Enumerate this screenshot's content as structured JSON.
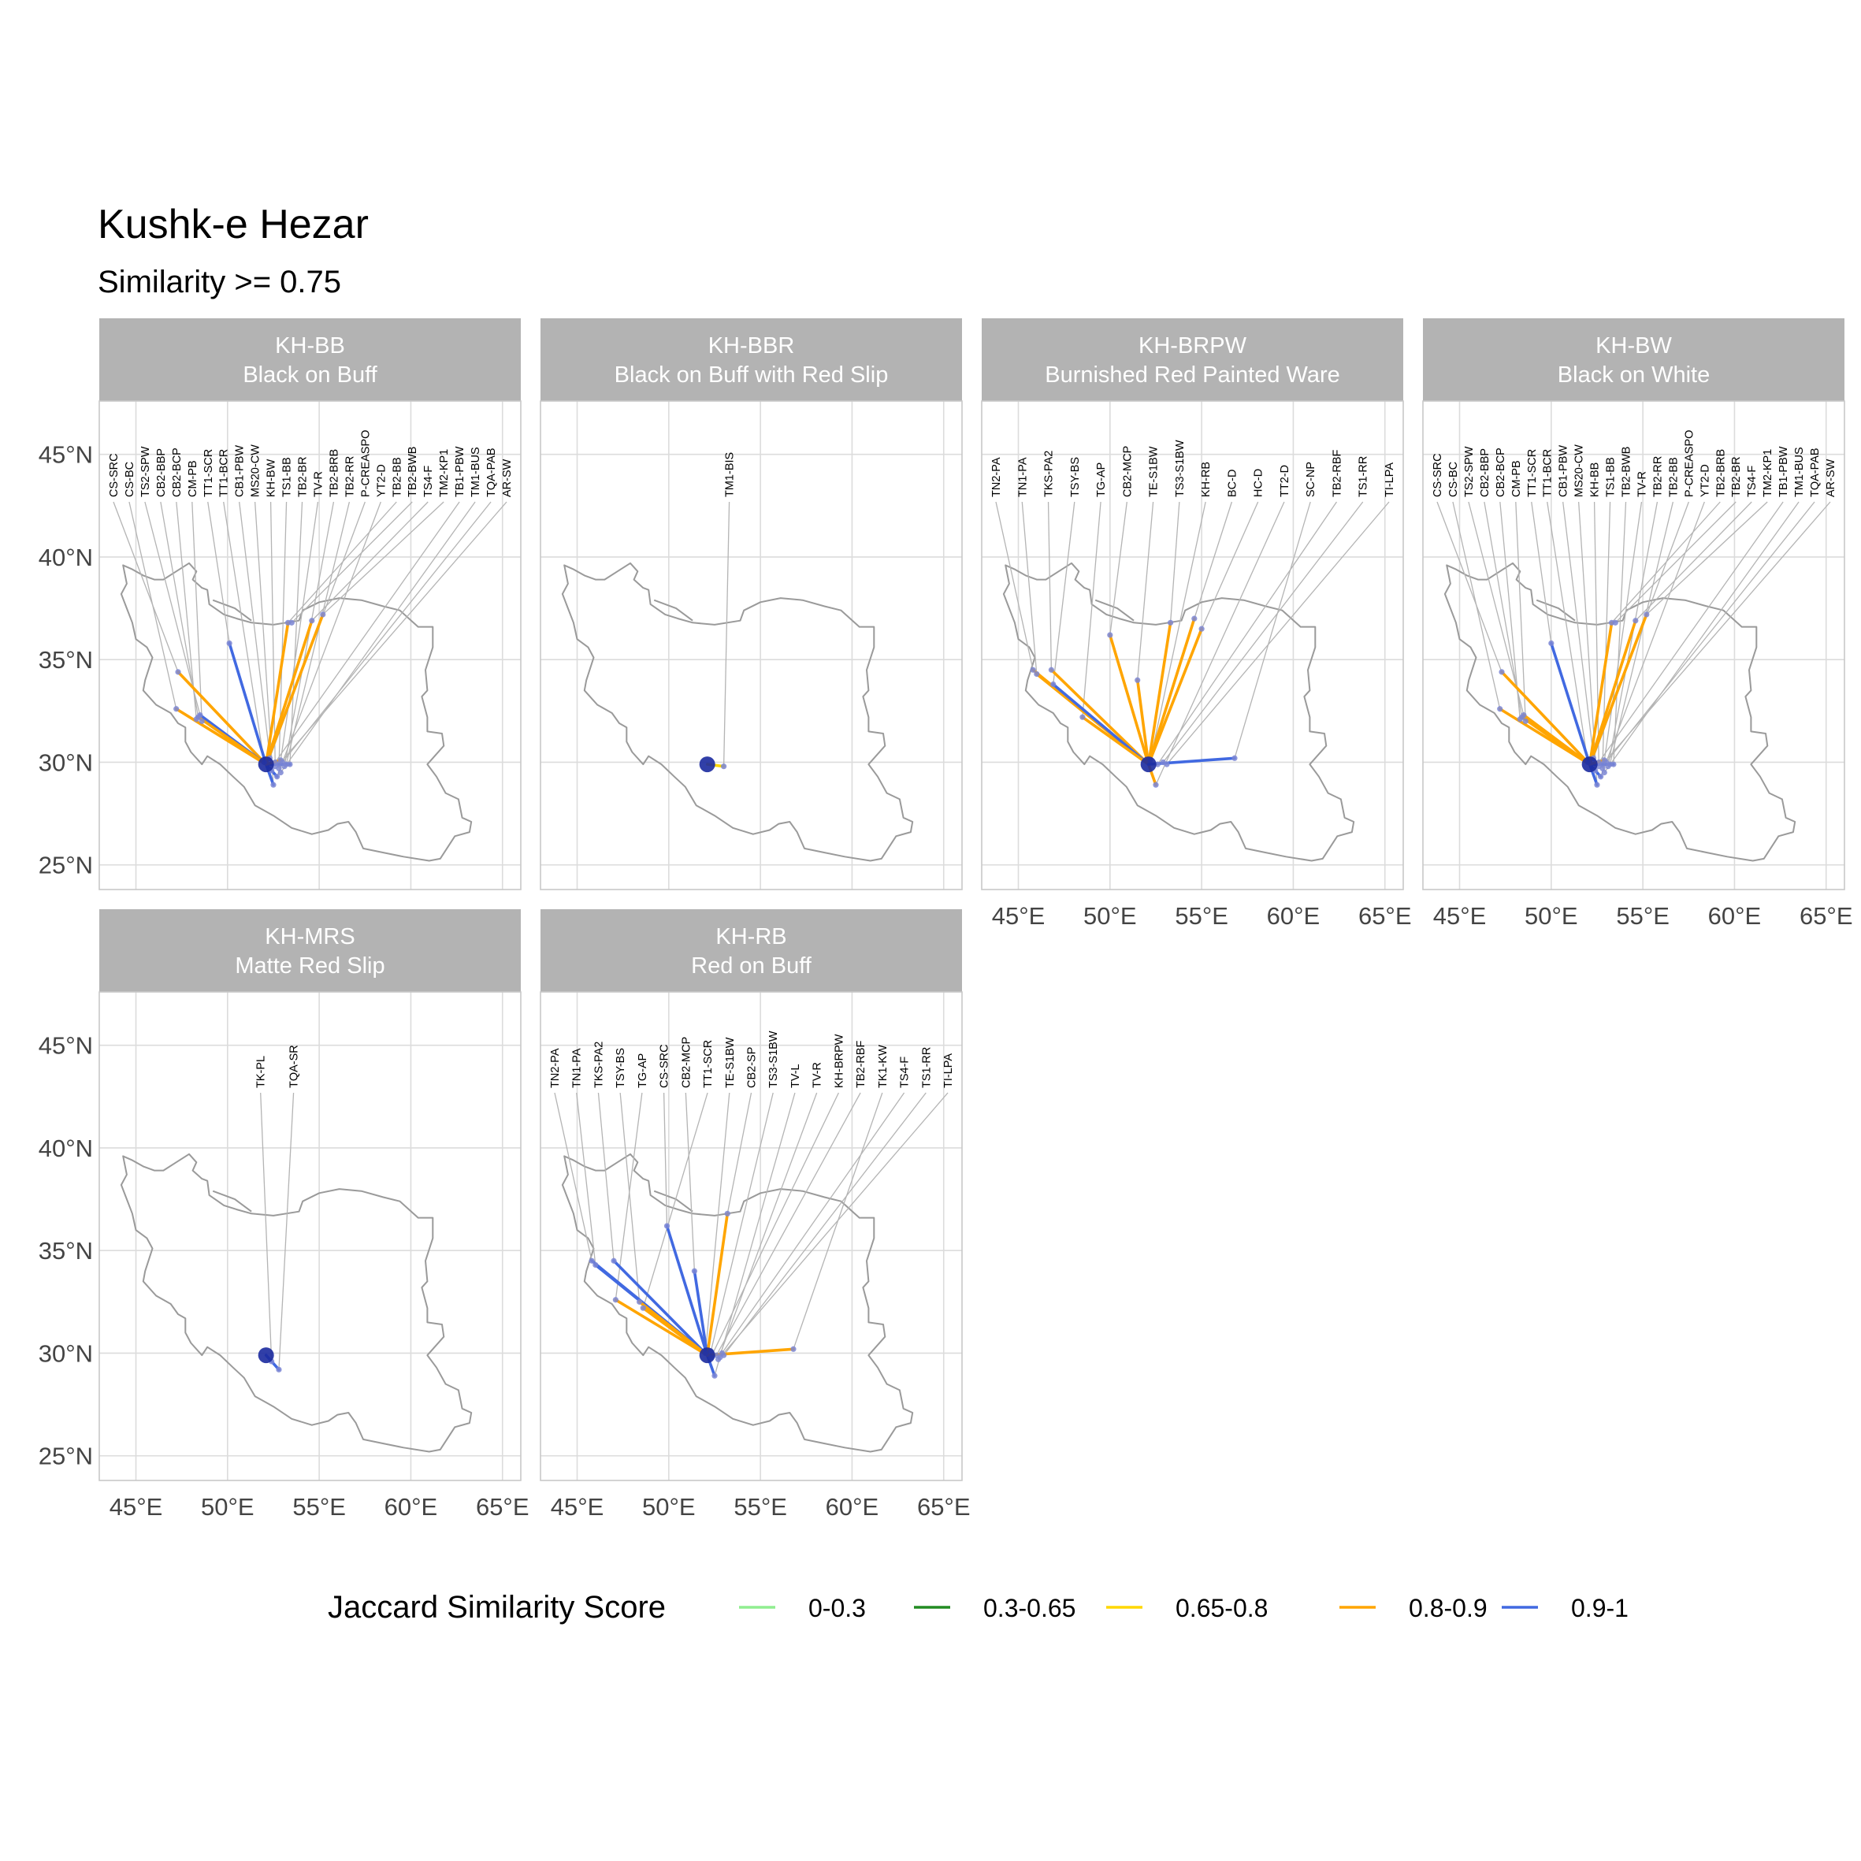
{
  "chart_data": {
    "type": "map",
    "title": "Kushk-e Hezar",
    "subtitle": "Similarity >= 0.75",
    "xlim": [
      43,
      66
    ],
    "ylim": [
      23.8,
      47.6
    ],
    "x_ticks": [
      {
        "value": 45,
        "label": "45°E"
      },
      {
        "value": 50,
        "label": "50°E"
      },
      {
        "value": 55,
        "label": "55°E"
      },
      {
        "value": 60,
        "label": "60°E"
      },
      {
        "value": 65,
        "label": "65°E"
      }
    ],
    "y_ticks": [
      {
        "value": 25,
        "label": "25°N"
      },
      {
        "value": 30,
        "label": "30°N"
      },
      {
        "value": 35,
        "label": "35°N"
      },
      {
        "value": 40,
        "label": "40°N"
      },
      {
        "value": 45,
        "label": "45°N"
      }
    ],
    "origin": {
      "lon": 52.1,
      "lat": 29.9
    },
    "grid": true,
    "legend": {
      "title": "Jaccard Similarity Score",
      "position": "bottom",
      "items": [
        {
          "label": "0-0.3",
          "color": "#90ee90"
        },
        {
          "label": "0.3-0.65",
          "color": "#228b22"
        },
        {
          "label": "0.65-0.8",
          "color": "#ffd700"
        },
        {
          "label": "0.8-0.9",
          "color": "#ffa500"
        },
        {
          "label": "0.9-1",
          "color": "#4169e1"
        }
      ]
    },
    "panels": [
      {
        "code": "KH-BB",
        "name": "Black on Buff",
        "labels": [
          "CS-SRC",
          "CS-BC",
          "TS2-SPW",
          "CB2-BBP",
          "CB2-BCP",
          "CM-PB",
          "TT1-SCR",
          "TT1-BCR",
          "CB1-PBW",
          "MS20-CW",
          "KH-BW",
          "TS1-BB",
          "TB2-BR",
          "TV-R",
          "TB2-BRB",
          "TB2-RR",
          "P-CREASPO",
          "YT2-D",
          "TB2-BB",
          "TB2-BWB",
          "TS4-F",
          "TM2-KP1",
          "TB1-PBW",
          "TM1-BUS",
          "TQA-PAB",
          "AR-SW"
        ],
        "sites": [
          {
            "lon": 47.3,
            "lat": 34.4
          },
          {
            "lon": 47.2,
            "lat": 32.6
          },
          {
            "lon": 48.5,
            "lat": 32.3
          },
          {
            "lon": 48.4,
            "lat": 32.2
          },
          {
            "lon": 48.3,
            "lat": 32.1
          },
          {
            "lon": 48.6,
            "lat": 32.0
          },
          {
            "lon": 50.1,
            "lat": 35.8
          },
          {
            "lon": 52.0,
            "lat": 30.0
          },
          {
            "lon": 52.4,
            "lat": 29.6
          },
          {
            "lon": 52.5,
            "lat": 28.9
          },
          {
            "lon": 52.6,
            "lat": 29.8
          },
          {
            "lon": 52.8,
            "lat": 29.7
          },
          {
            "lon": 53.4,
            "lat": 29.9
          },
          {
            "lon": 52.9,
            "lat": 30.1
          },
          {
            "lon": 53.1,
            "lat": 29.8
          },
          {
            "lon": 53.2,
            "lat": 29.9
          },
          {
            "lon": 52.3,
            "lat": 30.2
          },
          {
            "lon": 52.7,
            "lat": 29.3
          },
          {
            "lon": 53.3,
            "lat": 36.8
          },
          {
            "lon": 53.5,
            "lat": 36.8
          },
          {
            "lon": 54.6,
            "lat": 36.9
          },
          {
            "lon": 55.2,
            "lat": 37.2
          },
          {
            "lon": 52.6,
            "lat": 30.0
          },
          {
            "lon": 52.9,
            "lat": 29.5
          },
          {
            "lon": 53.0,
            "lat": 30.0
          },
          {
            "lon": 52.8,
            "lat": 29.9
          }
        ],
        "links": [
          {
            "lon": 47.3,
            "lat": 34.4,
            "color": "#ffa500"
          },
          {
            "lon": 47.2,
            "lat": 32.6,
            "color": "#ffa500"
          },
          {
            "lon": 48.5,
            "lat": 32.3,
            "color": "#4169e1"
          },
          {
            "lon": 48.4,
            "lat": 32.2,
            "color": "#ffa500"
          },
          {
            "lon": 50.1,
            "lat": 35.8,
            "color": "#4169e1"
          },
          {
            "lon": 53.3,
            "lat": 36.8,
            "color": "#ffa500"
          },
          {
            "lon": 54.6,
            "lat": 36.9,
            "color": "#ffa500"
          },
          {
            "lon": 55.2,
            "lat": 37.2,
            "color": "#ffa500"
          },
          {
            "lon": 52.5,
            "lat": 28.9,
            "color": "#4169e1"
          },
          {
            "lon": 52.7,
            "lat": 29.3,
            "color": "#4169e1"
          },
          {
            "lon": 53.4,
            "lat": 29.9,
            "color": "#4169e1"
          },
          {
            "lon": 52.9,
            "lat": 30.1,
            "color": "#ffa500"
          }
        ]
      },
      {
        "code": "KH-BBR",
        "name": "Black on Buff with Red Slip",
        "labels": [
          "TM1-BIS"
        ],
        "sites": [
          {
            "lon": 53.0,
            "lat": 29.8
          }
        ],
        "links": [
          {
            "lon": 53.0,
            "lat": 29.8,
            "color": "#ffd700"
          }
        ]
      },
      {
        "code": "KH-BRPW",
        "name": "Burnished Red Painted Ware",
        "labels": [
          "TN2-PA",
          "TN1-PA",
          "TKS-PA2",
          "TSY-BS",
          "TG-AP",
          "CB2-MCP",
          "TE-S1BW",
          "TS3-S1BW",
          "KH-RB",
          "BC-D",
          "HC-D",
          "TT2-D",
          "SC-NP",
          "TB2-RBF",
          "TS1-RR",
          "TI-LPA"
        ],
        "sites": [
          {
            "lon": 45.8,
            "lat": 34.5
          },
          {
            "lon": 46.0,
            "lat": 34.3
          },
          {
            "lon": 46.8,
            "lat": 34.5
          },
          {
            "lon": 46.9,
            "lat": 33.8
          },
          {
            "lon": 48.5,
            "lat": 32.2
          },
          {
            "lon": 50.0,
            "lat": 36.2
          },
          {
            "lon": 51.5,
            "lat": 34.0
          },
          {
            "lon": 53.3,
            "lat": 36.8
          },
          {
            "lon": 52.2,
            "lat": 30.1
          },
          {
            "lon": 54.6,
            "lat": 37.0
          },
          {
            "lon": 55.0,
            "lat": 36.5
          },
          {
            "lon": 52.5,
            "lat": 28.9
          },
          {
            "lon": 56.8,
            "lat": 30.2
          },
          {
            "lon": 52.6,
            "lat": 29.9
          },
          {
            "lon": 52.9,
            "lat": 30.0
          },
          {
            "lon": 53.1,
            "lat": 29.9
          }
        ],
        "links": [
          {
            "lon": 45.8,
            "lat": 34.5,
            "color": "#ffa500"
          },
          {
            "lon": 46.0,
            "lat": 34.3,
            "color": "#ffa500"
          },
          {
            "lon": 46.8,
            "lat": 34.5,
            "color": "#ffa500"
          },
          {
            "lon": 46.9,
            "lat": 33.8,
            "color": "#4169e1"
          },
          {
            "lon": 48.5,
            "lat": 32.2,
            "color": "#ffa500"
          },
          {
            "lon": 50.0,
            "lat": 36.2,
            "color": "#ffa500"
          },
          {
            "lon": 51.5,
            "lat": 34.0,
            "color": "#ffa500"
          },
          {
            "lon": 53.3,
            "lat": 36.8,
            "color": "#ffa500"
          },
          {
            "lon": 54.6,
            "lat": 37.0,
            "color": "#ffa500"
          },
          {
            "lon": 55.0,
            "lat": 36.5,
            "color": "#ffa500"
          },
          {
            "lon": 52.5,
            "lat": 28.9,
            "color": "#ffa500"
          },
          {
            "lon": 56.8,
            "lat": 30.2,
            "color": "#4169e1"
          }
        ]
      },
      {
        "code": "KH-BW",
        "name": "Black on White",
        "labels": [
          "CS-SRC",
          "CS-BC",
          "TS2-SPW",
          "CB2-BBP",
          "CB2-BCP",
          "CM-PB",
          "TT1-SCR",
          "TT1-BCR",
          "CB1-PBW",
          "MS20-CW",
          "KH-BB",
          "TS1-BB",
          "TB2-BWB",
          "TV-R",
          "TB2-RR",
          "TB2-BB",
          "P-CREASPO",
          "YT2-D",
          "TB2-BRB",
          "TB2-BR",
          "TS4-F",
          "TM2-KP1",
          "TB1-PBW",
          "TM1-BUS",
          "TQA-PAB",
          "AR-SW"
        ],
        "sites": [
          {
            "lon": 47.3,
            "lat": 34.4
          },
          {
            "lon": 47.2,
            "lat": 32.6
          },
          {
            "lon": 48.5,
            "lat": 32.3
          },
          {
            "lon": 48.4,
            "lat": 32.2
          },
          {
            "lon": 48.3,
            "lat": 32.1
          },
          {
            "lon": 48.6,
            "lat": 32.0
          },
          {
            "lon": 50.0,
            "lat": 35.8
          },
          {
            "lon": 52.0,
            "lat": 30.0
          },
          {
            "lon": 52.4,
            "lat": 29.6
          },
          {
            "lon": 52.5,
            "lat": 28.9
          },
          {
            "lon": 52.6,
            "lat": 29.8
          },
          {
            "lon": 52.8,
            "lat": 29.7
          },
          {
            "lon": 53.4,
            "lat": 29.9
          },
          {
            "lon": 52.9,
            "lat": 30.1
          },
          {
            "lon": 53.1,
            "lat": 29.8
          },
          {
            "lon": 53.2,
            "lat": 29.9
          },
          {
            "lon": 52.3,
            "lat": 30.2
          },
          {
            "lon": 52.7,
            "lat": 29.3
          },
          {
            "lon": 53.3,
            "lat": 36.8
          },
          {
            "lon": 53.5,
            "lat": 36.8
          },
          {
            "lon": 54.6,
            "lat": 36.9
          },
          {
            "lon": 55.2,
            "lat": 37.2
          },
          {
            "lon": 52.6,
            "lat": 30.0
          },
          {
            "lon": 52.9,
            "lat": 29.5
          },
          {
            "lon": 53.0,
            "lat": 30.0
          },
          {
            "lon": 52.8,
            "lat": 29.9
          }
        ],
        "links": [
          {
            "lon": 47.3,
            "lat": 34.4,
            "color": "#ffa500"
          },
          {
            "lon": 47.2,
            "lat": 32.6,
            "color": "#ffa500"
          },
          {
            "lon": 48.5,
            "lat": 32.3,
            "color": "#ffa500"
          },
          {
            "lon": 48.4,
            "lat": 32.2,
            "color": "#ffa500"
          },
          {
            "lon": 50.0,
            "lat": 35.8,
            "color": "#4169e1"
          },
          {
            "lon": 53.3,
            "lat": 36.8,
            "color": "#ffa500"
          },
          {
            "lon": 54.6,
            "lat": 36.9,
            "color": "#ffa500"
          },
          {
            "lon": 55.2,
            "lat": 37.2,
            "color": "#ffa500"
          },
          {
            "lon": 52.5,
            "lat": 28.9,
            "color": "#4169e1"
          },
          {
            "lon": 52.7,
            "lat": 29.3,
            "color": "#4169e1"
          },
          {
            "lon": 53.4,
            "lat": 29.9,
            "color": "#4169e1"
          },
          {
            "lon": 52.9,
            "lat": 30.1,
            "color": "#ffa500"
          }
        ]
      },
      {
        "code": "KH-MRS",
        "name": "Matte Red Slip",
        "labels": [
          "TK-PL",
          "TQA-SR"
        ],
        "sites": [
          {
            "lon": 52.4,
            "lat": 29.6
          },
          {
            "lon": 52.8,
            "lat": 29.2
          }
        ],
        "links": [
          {
            "lon": 52.8,
            "lat": 29.2,
            "color": "#4169e1"
          }
        ]
      },
      {
        "code": "KH-RB",
        "name": "Red on Buff",
        "labels": [
          "TN2-PA",
          "TN1-PA",
          "TKS-PA2",
          "TSY-BS",
          "TG-AP",
          "CS-SRC",
          "CB2-MCP",
          "TT1-SCR",
          "TE-S1BW",
          "CB2-SP",
          "TS3-S1BW",
          "TV-L",
          "TV-R",
          "KH-BRPW",
          "TB2-RBF",
          "TK1-KW",
          "TS4-F",
          "TS1-RR",
          "TI-LPA"
        ],
        "sites": [
          {
            "lon": 45.8,
            "lat": 34.5
          },
          {
            "lon": 46.0,
            "lat": 34.3
          },
          {
            "lon": 47.0,
            "lat": 34.5
          },
          {
            "lon": 48.4,
            "lat": 32.5
          },
          {
            "lon": 47.1,
            "lat": 32.6
          },
          {
            "lon": 49.9,
            "lat": 36.2
          },
          {
            "lon": 51.4,
            "lat": 34.0
          },
          {
            "lon": 48.6,
            "lat": 32.2
          },
          {
            "lon": 52.0,
            "lat": 30.0
          },
          {
            "lon": 53.2,
            "lat": 36.8
          },
          {
            "lon": 52.3,
            "lat": 30.1
          },
          {
            "lon": 52.5,
            "lat": 28.9
          },
          {
            "lon": 52.7,
            "lat": 29.7
          },
          {
            "lon": 52.3,
            "lat": 29.8
          },
          {
            "lon": 52.6,
            "lat": 29.9
          },
          {
            "lon": 56.8,
            "lat": 30.2
          },
          {
            "lon": 52.9,
            "lat": 30.0
          },
          {
            "lon": 53.0,
            "lat": 29.9
          },
          {
            "lon": 52.8,
            "lat": 29.8
          }
        ],
        "links": [
          {
            "lon": 45.8,
            "lat": 34.5,
            "color": "#4169e1"
          },
          {
            "lon": 46.0,
            "lat": 34.3,
            "color": "#4169e1"
          },
          {
            "lon": 47.0,
            "lat": 34.5,
            "color": "#4169e1"
          },
          {
            "lon": 48.4,
            "lat": 32.5,
            "color": "#ffa500"
          },
          {
            "lon": 47.1,
            "lat": 32.6,
            "color": "#ffa500"
          },
          {
            "lon": 49.9,
            "lat": 36.2,
            "color": "#4169e1"
          },
          {
            "lon": 51.4,
            "lat": 34.0,
            "color": "#4169e1"
          },
          {
            "lon": 48.6,
            "lat": 32.2,
            "color": "#ffa500"
          },
          {
            "lon": 53.2,
            "lat": 36.8,
            "color": "#ffa500"
          },
          {
            "lon": 52.5,
            "lat": 28.9,
            "color": "#4169e1"
          },
          {
            "lon": 56.8,
            "lat": 30.2,
            "color": "#ffa500"
          }
        ]
      }
    ]
  }
}
